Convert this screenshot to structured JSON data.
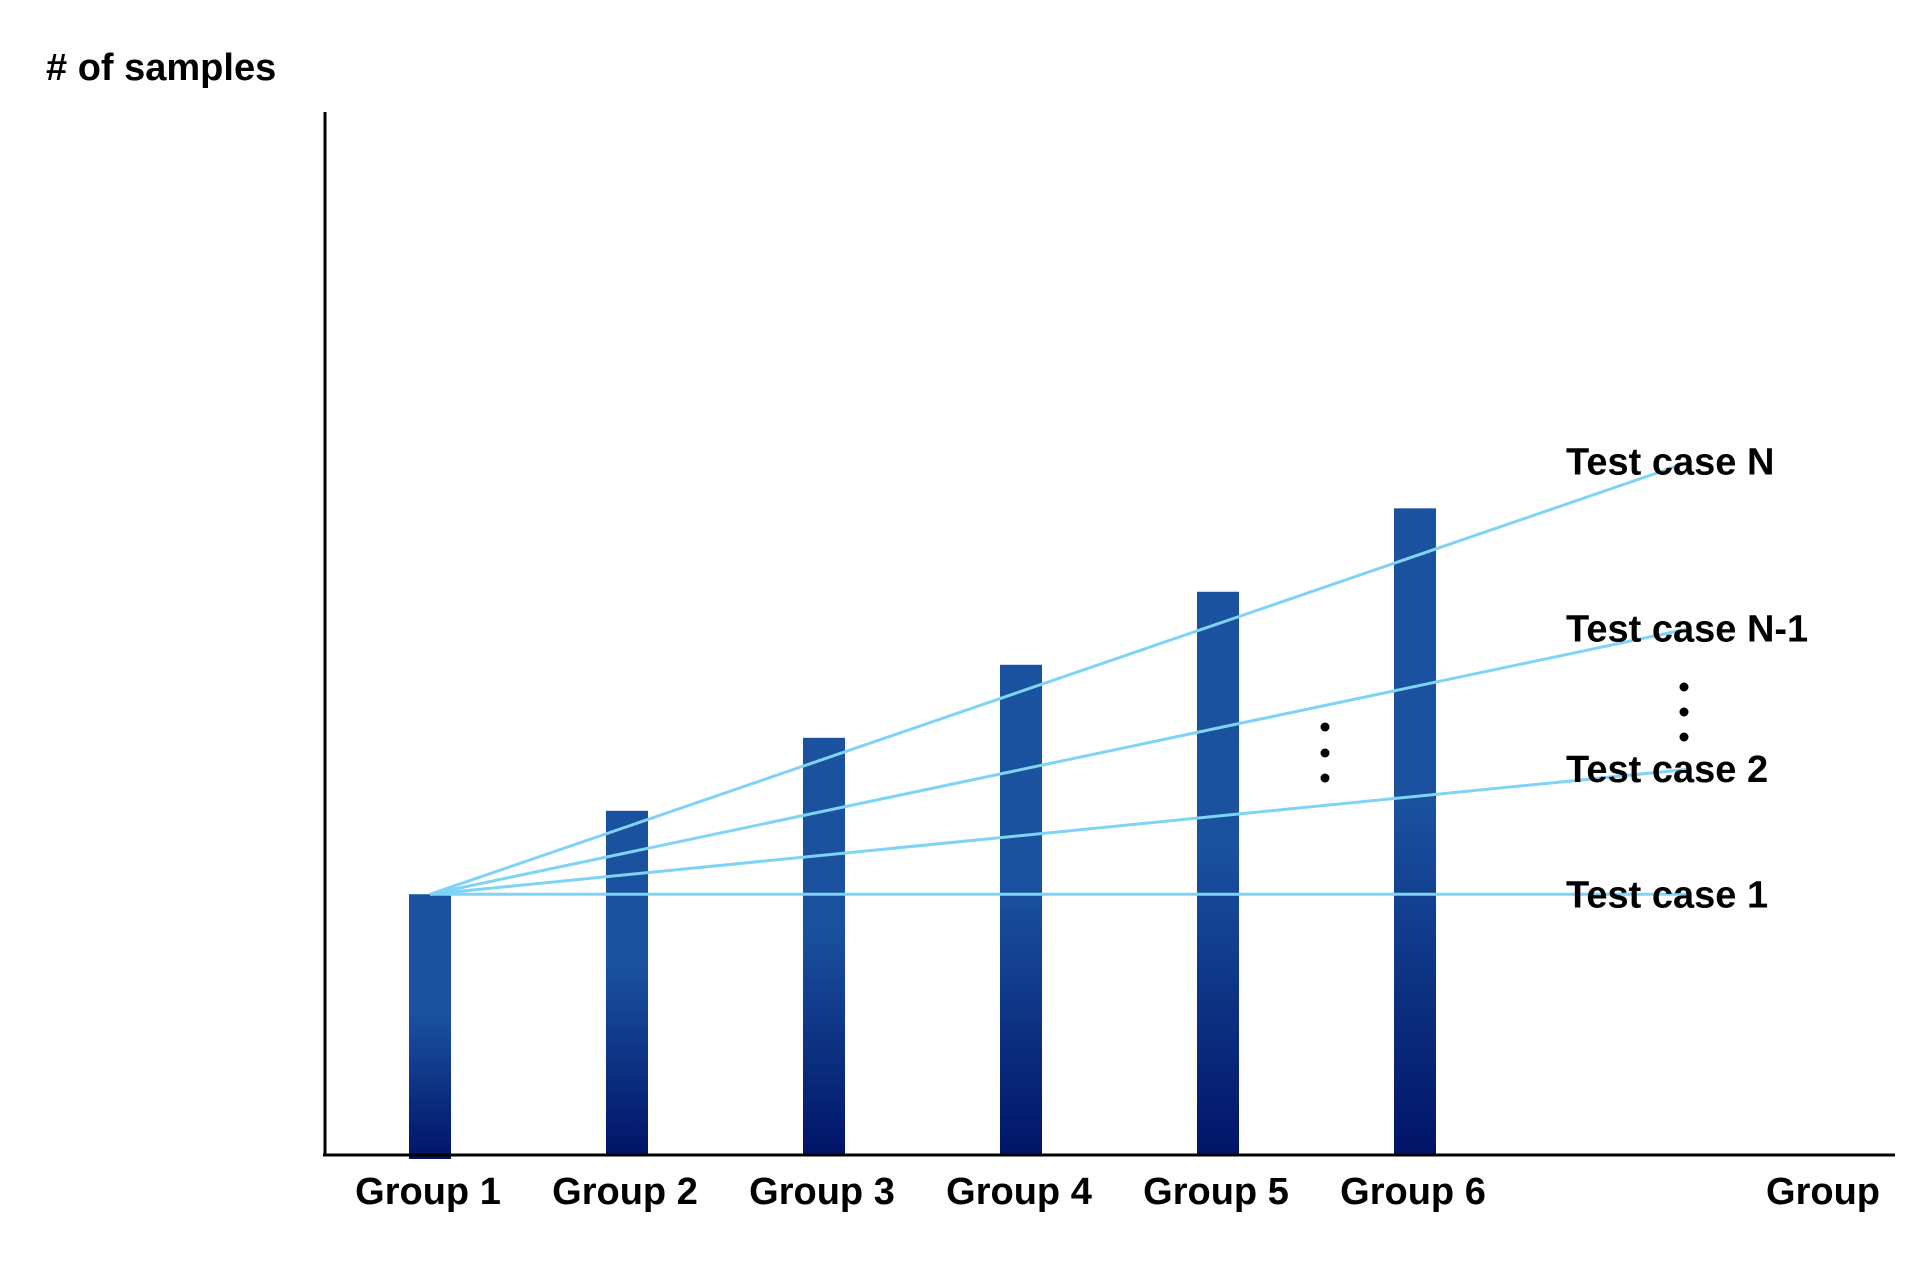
{
  "chart_data": {
    "type": "bar",
    "ylabel": "# of samples",
    "xlabel": "Group",
    "categories": [
      "Group 1",
      "Group 2",
      "Group 3",
      "Group 4",
      "Group 5",
      "Group 6"
    ],
    "values": [
      25,
      33,
      40,
      47,
      54,
      62
    ],
    "ylim": [
      0,
      100
    ],
    "grid": false,
    "bar_color_top": "#1a52a0",
    "bar_color_bottom": "#011467",
    "line_color": "#7fd3f5",
    "axis_color": "#000000",
    "series": [
      {
        "name": "Test case 1",
        "x": [
          1,
          7.4
        ],
        "values": [
          25,
          25
        ]
      },
      {
        "name": "Test case 2",
        "x": [
          1,
          7.4
        ],
        "values": [
          25,
          37
        ]
      },
      {
        "name": "Test case N-1",
        "x": [
          1,
          7.4
        ],
        "values": [
          25,
          50.5
        ]
      },
      {
        "name": "Test case N",
        "x": [
          1,
          7.4
        ],
        "values": [
          25,
          66.5
        ]
      }
    ]
  }
}
